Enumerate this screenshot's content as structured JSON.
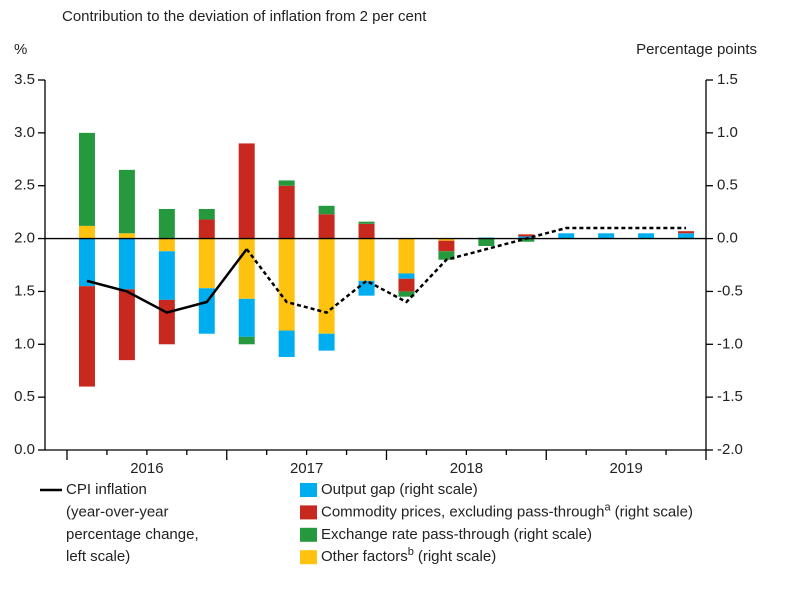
{
  "chart_data": {
    "type": "bar",
    "title": "Contribution to the deviation of inflation from 2 per cent",
    "ylabel": "%",
    "y2label": "Percentage points",
    "categories": [
      null,
      null,
      null,
      null,
      null,
      null,
      null,
      null,
      null,
      null,
      null,
      null,
      null,
      null,
      null,
      null
    ],
    "year_labels": [
      "2016",
      "2017",
      "2018",
      "2019"
    ],
    "ylim": [
      0,
      3.5
    ],
    "yticks": [
      {
        "value": 0,
        "label": "0.0"
      },
      {
        "value": 0.5,
        "label": "0.5"
      },
      {
        "value": 1,
        "label": "1.0"
      },
      {
        "value": 1.5,
        "label": "1.5"
      },
      {
        "value": 2,
        "label": "2.0"
      },
      {
        "value": 2.5,
        "label": "2.5"
      },
      {
        "value": 3,
        "label": "3.0"
      },
      {
        "value": 3.5,
        "label": "3.5"
      }
    ],
    "y2lim": [
      -2,
      1.5
    ],
    "y2ticks": [
      {
        "value": -2,
        "label": "-2.0"
      },
      {
        "value": -1.5,
        "label": "-1.5"
      },
      {
        "value": -1,
        "label": "-1.0"
      },
      {
        "value": -0.5,
        "label": "-0.5"
      },
      {
        "value": 0,
        "label": "0.0"
      },
      {
        "value": 0.5,
        "label": "0.5"
      },
      {
        "value": 1,
        "label": "1.0"
      },
      {
        "value": 1.5,
        "label": "1.5"
      }
    ],
    "stacked": true,
    "series": [
      {
        "name": "Output gap (right scale)",
        "color": "#00aeef",
        "axis": "y2",
        "values": [
          -0.45,
          -0.48,
          -0.46,
          -0.43,
          -0.36,
          -0.25,
          -0.16,
          -0.14,
          -0.05,
          0,
          0.01,
          0.02,
          0.05,
          0.05,
          0.05,
          0.05
        ]
      },
      {
        "name": "Commodity prices, excluding pass-through",
        "footnote": "a",
        "name_suffix": "(right scale)",
        "color": "#c8291e",
        "axis": "y2",
        "values": [
          -0.95,
          -0.67,
          -0.42,
          0.18,
          0.9,
          0.5,
          0.23,
          0.14,
          -0.12,
          -0.1,
          0,
          0.02,
          0,
          0,
          0,
          0.02
        ]
      },
      {
        "name": "Exchange rate pass-through (right scale)",
        "color": "#26993f",
        "axis": "y2",
        "values": [
          0.88,
          0.6,
          0.28,
          0.1,
          -0.07,
          0.05,
          0.08,
          0.02,
          -0.05,
          -0.08,
          -0.07,
          -0.03,
          0,
          0,
          0,
          0
        ]
      },
      {
        "name": "Other factors",
        "footnote": "b",
        "name_suffix": "(right scale)",
        "color": "#ffc20e",
        "axis": "y2",
        "values": [
          0.12,
          0.05,
          -0.12,
          -0.47,
          -0.57,
          -0.87,
          -0.9,
          -0.4,
          -0.33,
          -0.02,
          0,
          0,
          0,
          0,
          0,
          0
        ]
      }
    ],
    "line": {
      "name": [
        "CPI inflation",
        "(year-over-year",
        "percentage change,",
        "left scale)"
      ],
      "color": "#000000",
      "values": [
        1.6,
        1.5,
        1.3,
        1.4,
        1.9,
        1.4,
        1.3,
        1.6,
        1.4,
        1.8,
        1.9,
        2.0,
        2.1,
        2.1,
        2.1,
        2.1
      ],
      "dashed_from": 4
    }
  }
}
